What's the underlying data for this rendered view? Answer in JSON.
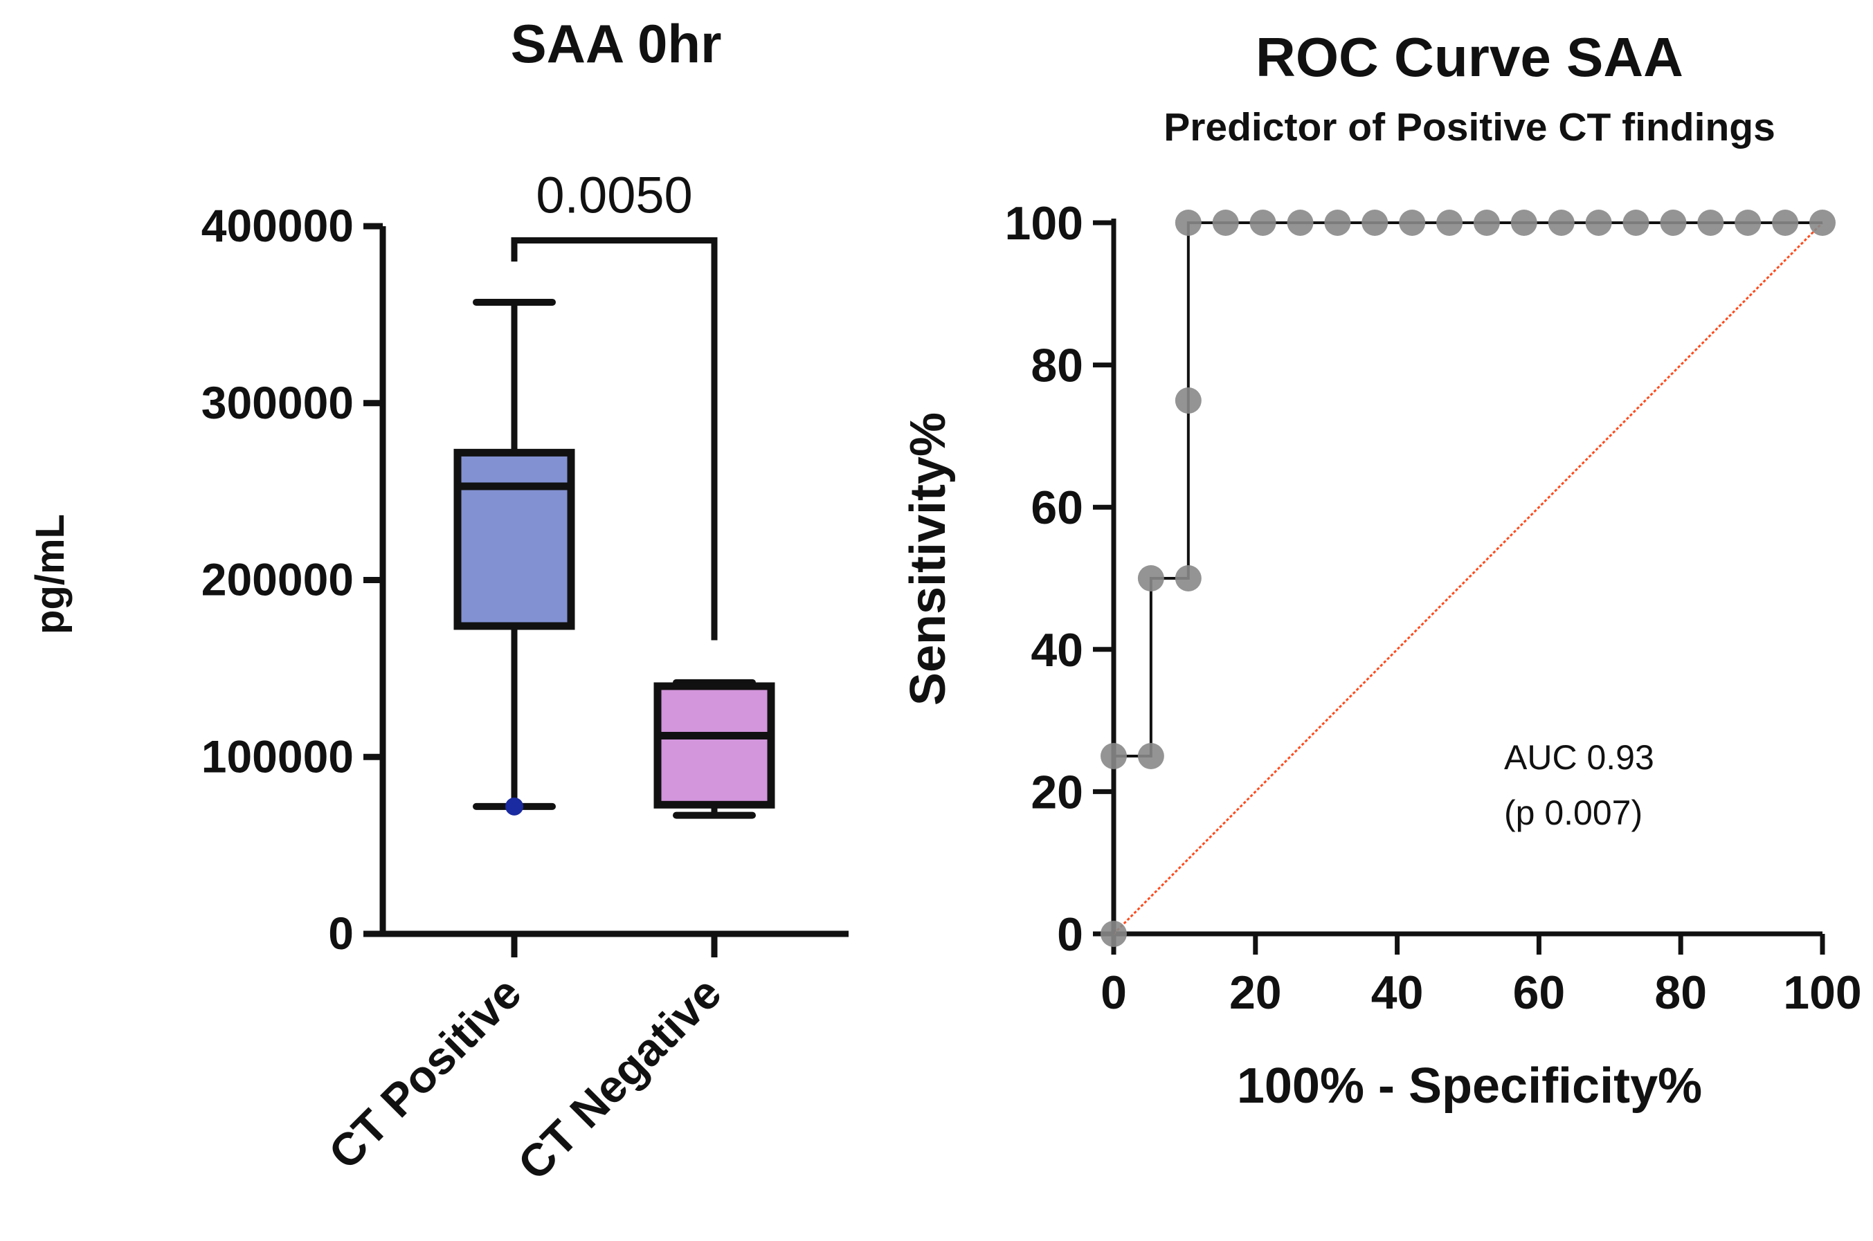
{
  "chart_data": [
    {
      "type": "box",
      "title": "SAA 0hr",
      "ylabel": "pg/mL",
      "xlabel": "",
      "ylim": [
        0,
        400000
      ],
      "yticks": [
        "0",
        "100000",
        "200000",
        "300000",
        "400000"
      ],
      "categories": [
        "CT Positive",
        "CT Negative"
      ],
      "boxes": [
        {
          "name": "CT Positive",
          "min": 72000,
          "q1": 174000,
          "median": 253000,
          "q3": 272000,
          "max": 357000,
          "color": "#8291d2",
          "outliers": [
            72000
          ]
        },
        {
          "name": "CT Negative",
          "min": 67000,
          "q1": 73000,
          "median": 112000,
          "q3": 140000,
          "max": 142000,
          "color": "#d395dc",
          "outliers": []
        }
      ],
      "comparison": {
        "label": "0.0050",
        "y": 392000,
        "left_end": 380000,
        "right_end": 166000
      }
    },
    {
      "type": "line",
      "title": "ROC Curve SAA",
      "subtitle": "Predictor of Positive CT findings",
      "xlabel": "100% - Specificity%",
      "ylabel": "Sensitivity%",
      "xlim": [
        0,
        100
      ],
      "ylim": [
        0,
        100
      ],
      "xticks": [
        "0",
        "20",
        "40",
        "60",
        "80",
        "100"
      ],
      "yticks": [
        "0",
        "20",
        "40",
        "60",
        "80",
        "100"
      ],
      "series": [
        {
          "name": "ROC",
          "points": [
            [
              0,
              0
            ],
            [
              0,
              25
            ],
            [
              5.26,
              25
            ],
            [
              5.26,
              50
            ],
            [
              10.53,
              50
            ],
            [
              10.53,
              75
            ],
            [
              10.53,
              100
            ],
            [
              15.79,
              100
            ],
            [
              21.05,
              100
            ],
            [
              26.32,
              100
            ],
            [
              31.58,
              100
            ],
            [
              36.84,
              100
            ],
            [
              42.11,
              100
            ],
            [
              47.37,
              100
            ],
            [
              52.63,
              100
            ],
            [
              57.89,
              100
            ],
            [
              63.16,
              100
            ],
            [
              68.42,
              100
            ],
            [
              73.68,
              100
            ],
            [
              78.95,
              100
            ],
            [
              84.21,
              100
            ],
            [
              89.47,
              100
            ],
            [
              94.74,
              100
            ],
            [
              100,
              100
            ]
          ]
        },
        {
          "name": "Reference",
          "points": [
            [
              0,
              0
            ],
            [
              100,
              100
            ]
          ],
          "color": "#ff4a1c"
        }
      ],
      "annotations": [
        "AUC 0.93",
        "(p 0.007)"
      ]
    }
  ]
}
